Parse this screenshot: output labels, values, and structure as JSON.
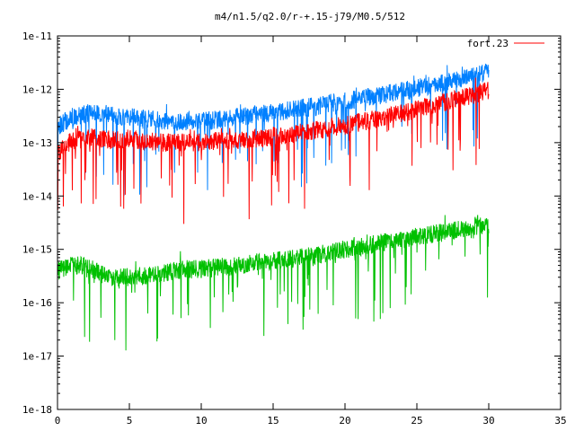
{
  "chart_data": {
    "type": "line",
    "title": "m4/n1.5/q2.0/r-+.15-j79/M0.5/512",
    "xlabel": "",
    "ylabel": "",
    "xlim": [
      0,
      35
    ],
    "ylim": [
      1e-18,
      1e-11
    ],
    "yscale": "log",
    "grid": false,
    "legend_placement": "top-right",
    "x_ticks": [
      0,
      5,
      10,
      15,
      20,
      25,
      30,
      35
    ],
    "x_tick_labels": [
      "0",
      "5",
      "10",
      "15",
      "20",
      "25",
      "30",
      "35"
    ],
    "y_ticks": [
      1e-18,
      1e-17,
      1e-16,
      1e-15,
      1e-14,
      1e-13,
      1e-12,
      1e-11
    ],
    "y_tick_labels": [
      "1e-18",
      "1e-17",
      "1e-16",
      "1e-15",
      "1e-14",
      "1e-13",
      "1e-12",
      "1e-11"
    ],
    "series": [
      {
        "name": "fort.23",
        "color": "#ff0000",
        "x": [
          0,
          1,
          2,
          3,
          4,
          5,
          6,
          7,
          8,
          9,
          10,
          11,
          12,
          13,
          14,
          15,
          16,
          17,
          18,
          19,
          20,
          21,
          22,
          23,
          24,
          25,
          26,
          27,
          28,
          29,
          30
        ],
        "y": [
          6e-14,
          1.1e-13,
          1.2e-13,
          1.2e-13,
          1.1e-13,
          1.2e-13,
          1.1e-13,
          1e-13,
          1e-13,
          1e-13,
          1e-13,
          1.1e-13,
          1.1e-13,
          1.1e-13,
          1.2e-13,
          1.3e-13,
          1.4e-13,
          1.6e-13,
          1.7e-13,
          1.9e-13,
          2.1e-13,
          2.4e-13,
          2.7e-13,
          3.1e-13,
          3.6e-13,
          4.2e-13,
          4.9e-13,
          5.8e-13,
          6.8e-13,
          8e-13,
          9.5e-13
        ]
      },
      {
        "color": "#0080ff",
        "x": [
          0,
          1,
          2,
          3,
          4,
          5,
          6,
          7,
          8,
          9,
          10,
          11,
          12,
          13,
          14,
          15,
          16,
          17,
          18,
          19,
          20,
          21,
          22,
          23,
          24,
          25,
          26,
          27,
          28,
          29,
          30
        ],
        "y": [
          2e-13,
          3e-13,
          3.5e-13,
          3.5e-13,
          3.2e-13,
          3e-13,
          2.8e-13,
          2.6e-13,
          2.5e-13,
          2.5e-13,
          2.6e-13,
          2.7e-13,
          2.9e-13,
          3.1e-13,
          3.4e-13,
          3.7e-13,
          4e-13,
          4.4e-13,
          4.8e-13,
          5.3e-13,
          5.9e-13,
          6.6e-13,
          7.4e-13,
          8.3e-13,
          9.3e-13,
          1.05e-12,
          1.2e-12,
          1.35e-12,
          1.55e-12,
          1.8e-12,
          2.1e-12
        ]
      },
      {
        "color": "#00c000",
        "x": [
          0,
          1,
          2,
          3,
          4,
          5,
          6,
          7,
          8,
          9,
          10,
          11,
          12,
          13,
          14,
          15,
          16,
          17,
          18,
          19,
          20,
          21,
          22,
          23,
          24,
          25,
          26,
          27,
          28,
          29,
          30
        ],
        "y": [
          4e-16,
          5e-16,
          5e-16,
          3.5e-16,
          3e-16,
          3e-16,
          3.2e-16,
          3.5e-16,
          4e-16,
          4.2e-16,
          4.3e-16,
          4.5e-16,
          4.8e-16,
          5.2e-16,
          5.6e-16,
          6e-16,
          6.5e-16,
          7e-16,
          7.8e-16,
          8.8e-16,
          1e-15,
          1.1e-15,
          1.25e-15,
          1.4e-15,
          1.55e-15,
          1.7e-15,
          1.9e-15,
          2.1e-15,
          2.4e-15,
          2.7e-15,
          3e-15
        ]
      }
    ]
  }
}
